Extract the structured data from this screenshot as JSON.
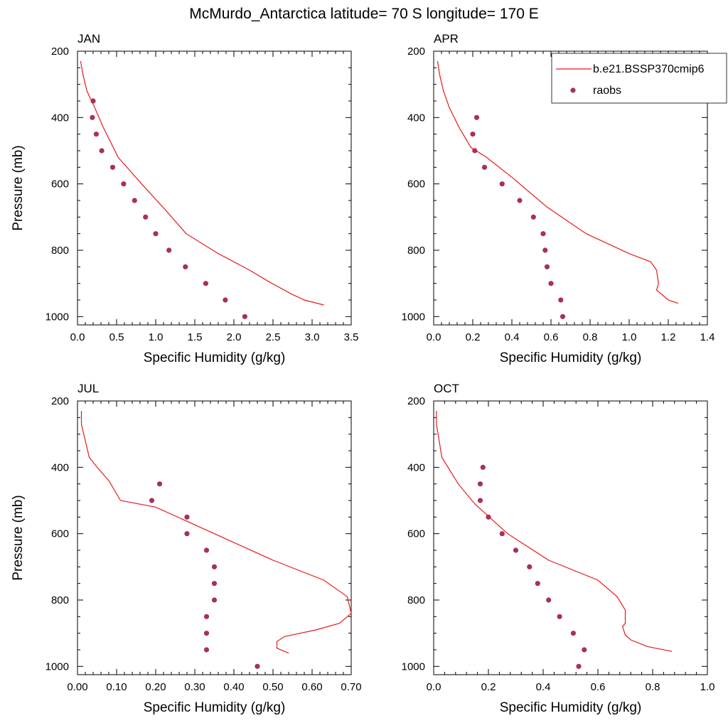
{
  "figure": {
    "title": "McMurdo_Antarctica  latitude= 70 S longitude= 170 E"
  },
  "legend": {
    "placement": "top-right of APR panel",
    "entries": [
      {
        "label": "b.e21.BSSP370cmip6",
        "kind": "line",
        "color": "#e8191c"
      },
      {
        "label": "raobs",
        "kind": "marker",
        "color": "#a8305a"
      }
    ]
  },
  "colors": {
    "model_line": "#e8191c",
    "obs_marker": "#a8305a"
  },
  "chart_data": [
    {
      "type": "line",
      "panel": "JAN",
      "title": "JAN",
      "xlabel": "Specific Humidity (g/kg)",
      "ylabel": "Pressure (mb)",
      "xlim": [
        0,
        3.5
      ],
      "ylim": [
        200,
        1025
      ],
      "y_inverted": true,
      "xticks": [
        0.0,
        0.5,
        1.0,
        1.5,
        2.0,
        2.5,
        3.0,
        3.5
      ],
      "xtick_labels": [
        "0.0",
        "0.5",
        "1.0",
        "1.5",
        "2.0",
        "2.5",
        "3.0",
        "3.5"
      ],
      "yticks": [
        200,
        400,
        600,
        800,
        1000
      ],
      "ytick_labels": [
        "200",
        "400",
        "600",
        "800",
        "1000"
      ],
      "series": [
        {
          "name": "b.e21.BSSP370cmip6",
          "kind": "line",
          "x": [
            0.04,
            0.07,
            0.12,
            0.22,
            0.33,
            0.52,
            0.82,
            1.13,
            1.39,
            1.8,
            2.2,
            2.45,
            2.72,
            2.9,
            3.15
          ],
          "y": [
            230,
            270,
            320,
            370,
            430,
            520,
            600,
            680,
            750,
            810,
            860,
            895,
            930,
            950,
            965
          ]
        },
        {
          "name": "raobs",
          "kind": "scatter",
          "x": [
            0.2,
            0.19,
            0.24,
            0.31,
            0.45,
            0.59,
            0.73,
            0.87,
            1.0,
            1.17,
            1.38,
            1.64,
            1.89,
            2.14
          ],
          "y": [
            350,
            400,
            450,
            500,
            550,
            600,
            650,
            700,
            750,
            800,
            850,
            900,
            950,
            1000
          ]
        }
      ]
    },
    {
      "type": "line",
      "panel": "APR",
      "title": "APR",
      "xlabel": "Specific Humidity (g/kg)",
      "ylabel": "",
      "xlim": [
        0,
        1.4
      ],
      "ylim": [
        200,
        1025
      ],
      "y_inverted": true,
      "xticks": [
        0.0,
        0.2,
        0.4,
        0.6,
        0.8,
        1.0,
        1.2,
        1.4
      ],
      "xtick_labels": [
        "0.0",
        "0.2",
        "0.4",
        "0.6",
        "0.8",
        "1.0",
        "1.2",
        "1.4"
      ],
      "yticks": [
        200,
        400,
        600,
        800,
        1000
      ],
      "ytick_labels": [
        "200",
        "400",
        "600",
        "800",
        "1000"
      ],
      "series": [
        {
          "name": "b.e21.BSSP370cmip6",
          "kind": "line",
          "x": [
            0.02,
            0.03,
            0.05,
            0.08,
            0.13,
            0.19,
            0.27,
            0.4,
            0.58,
            0.78,
            1.0,
            1.11,
            1.14,
            1.15,
            1.14,
            1.17,
            1.2,
            1.25
          ],
          "y": [
            230,
            270,
            320,
            370,
            430,
            490,
            520,
            580,
            670,
            750,
            810,
            835,
            860,
            900,
            920,
            935,
            950,
            960
          ]
        },
        {
          "name": "raobs",
          "kind": "scatter",
          "x": [
            0.22,
            0.2,
            0.21,
            0.26,
            0.35,
            0.44,
            0.51,
            0.56,
            0.57,
            0.58,
            0.6,
            0.65,
            0.66
          ],
          "y": [
            400,
            450,
            500,
            550,
            600,
            650,
            700,
            750,
            800,
            850,
            900,
            950,
            1000
          ]
        }
      ]
    },
    {
      "type": "line",
      "panel": "JUL",
      "title": "JUL",
      "xlabel": "Specific Humidity (g/kg)",
      "ylabel": "Pressure (mb)",
      "xlim": [
        0,
        0.7
      ],
      "ylim": [
        200,
        1025
      ],
      "y_inverted": true,
      "xticks": [
        0.0,
        0.1,
        0.2,
        0.3,
        0.4,
        0.5,
        0.6,
        0.7
      ],
      "xtick_labels": [
        "0.00",
        "0.10",
        "0.20",
        "0.30",
        "0.40",
        "0.50",
        "0.60",
        "0.70"
      ],
      "yticks": [
        200,
        400,
        600,
        800,
        1000
      ],
      "ytick_labels": [
        "200",
        "400",
        "600",
        "800",
        "1000"
      ],
      "series": [
        {
          "name": "b.e21.BSSP370cmip6",
          "kind": "line",
          "x": [
            0.01,
            0.01,
            0.02,
            0.03,
            0.05,
            0.08,
            0.11,
            0.2,
            0.35,
            0.5,
            0.63,
            0.69,
            0.7,
            0.67,
            0.61,
            0.53,
            0.51,
            0.51,
            0.54
          ],
          "y": [
            230,
            270,
            320,
            370,
            400,
            440,
            500,
            520,
            600,
            680,
            740,
            790,
            840,
            870,
            890,
            910,
            925,
            945,
            960
          ]
        },
        {
          "name": "raobs",
          "kind": "scatter",
          "x": [
            0.21,
            0.19,
            0.28,
            0.28,
            0.33,
            0.35,
            0.35,
            0.35,
            0.33,
            0.33,
            0.33,
            0.46
          ],
          "y": [
            450,
            500,
            550,
            600,
            650,
            700,
            750,
            800,
            850,
            900,
            950,
            1000
          ]
        }
      ]
    },
    {
      "type": "line",
      "panel": "OCT",
      "title": "OCT",
      "xlabel": "Specific Humidity (g/kg)",
      "ylabel": "",
      "xlim": [
        0,
        1.0
      ],
      "ylim": [
        200,
        1025
      ],
      "y_inverted": true,
      "xticks": [
        0.0,
        0.2,
        0.4,
        0.6,
        0.8,
        1.0
      ],
      "xtick_labels": [
        "0.0",
        "0.2",
        "0.4",
        "0.6",
        "0.8",
        "1.0"
      ],
      "yticks": [
        200,
        400,
        600,
        800,
        1000
      ],
      "ytick_labels": [
        "200",
        "400",
        "600",
        "800",
        "1000"
      ],
      "series": [
        {
          "name": "b.e21.BSSP370cmip6",
          "kind": "line",
          "x": [
            0.01,
            0.01,
            0.02,
            0.03,
            0.06,
            0.09,
            0.15,
            0.27,
            0.42,
            0.6,
            0.67,
            0.7,
            0.7,
            0.69,
            0.7,
            0.72,
            0.78,
            0.87
          ],
          "y": [
            230,
            270,
            320,
            370,
            410,
            450,
            510,
            600,
            680,
            740,
            790,
            830,
            870,
            880,
            905,
            920,
            940,
            955
          ]
        },
        {
          "name": "raobs",
          "kind": "scatter",
          "x": [
            0.18,
            0.17,
            0.17,
            0.2,
            0.25,
            0.3,
            0.35,
            0.38,
            0.42,
            0.46,
            0.51,
            0.55,
            0.53
          ],
          "y": [
            400,
            450,
            500,
            550,
            600,
            650,
            700,
            750,
            800,
            850,
            900,
            950,
            1000
          ]
        }
      ]
    }
  ]
}
